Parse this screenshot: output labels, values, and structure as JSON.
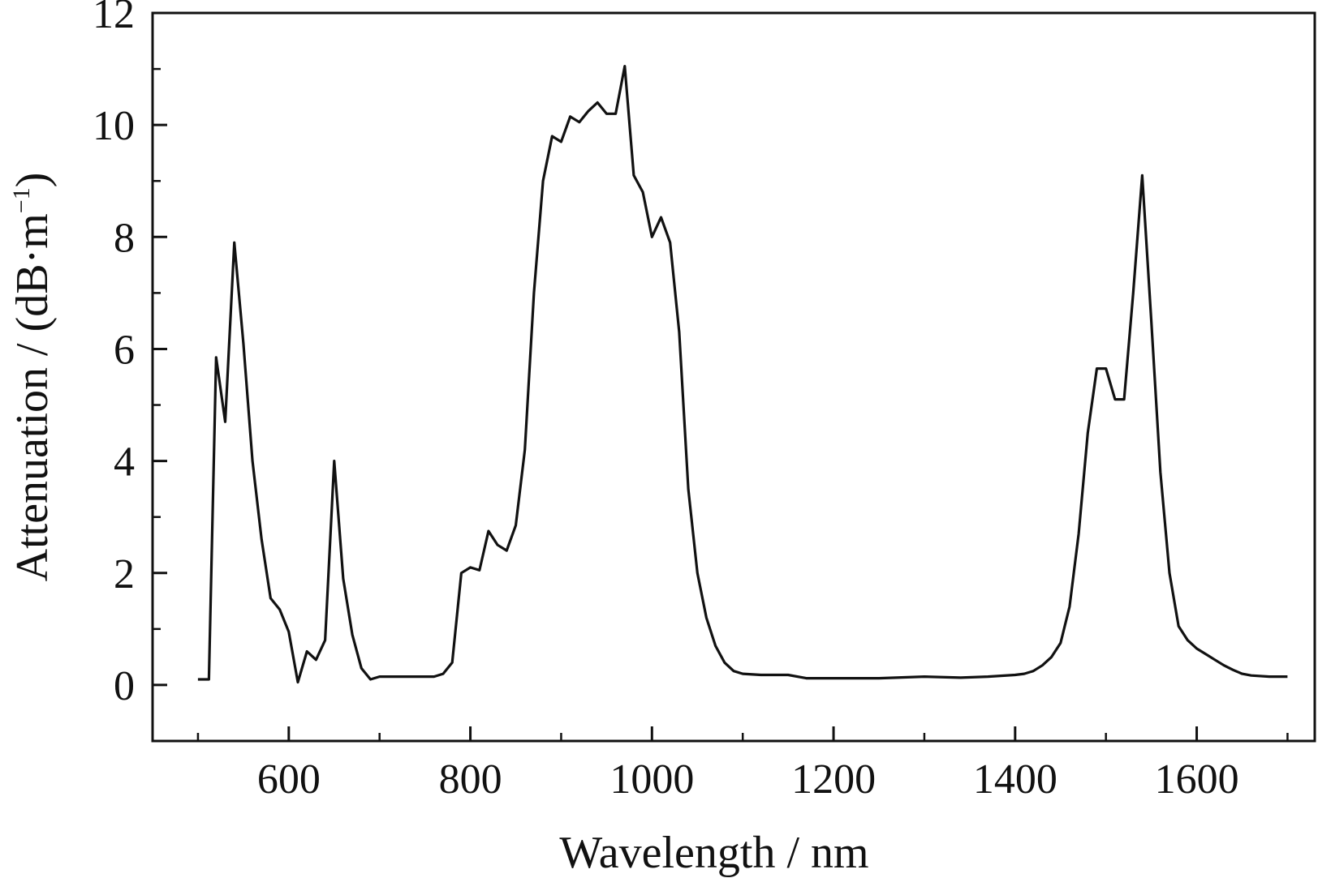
{
  "chart_data": {
    "type": "line",
    "title": "",
    "xlabel": "Wavelength / nm",
    "ylabel": "Attenuation / (dB·m",
    "ylabel_sup": "−1",
    "ylabel_close": ")",
    "xlim": [
      450,
      1730
    ],
    "ylim": [
      -1,
      12
    ],
    "x_ticks": [
      600,
      800,
      1000,
      1200,
      1400,
      1600
    ],
    "y_ticks": [
      0,
      2,
      4,
      6,
      8,
      10,
      12
    ],
    "x_tick_labels": [
      "600",
      "800",
      "1000",
      "1200",
      "1400",
      "1600"
    ],
    "y_tick_labels": [
      "0",
      "2",
      "4",
      "6",
      "8",
      "10",
      "12"
    ],
    "grid": false,
    "line_color": "#111111",
    "series": [
      {
        "x": [
          500,
          512,
          520,
          530,
          540,
          550,
          560,
          570,
          580,
          590,
          600,
          610,
          620,
          630,
          640,
          650,
          660,
          670,
          680,
          690,
          700,
          710,
          720,
          730,
          740,
          750,
          760,
          770,
          780,
          790,
          800,
          810,
          820,
          830,
          840,
          850,
          860,
          870,
          880,
          890,
          900,
          910,
          920,
          930,
          940,
          950,
          960,
          970,
          980,
          990,
          1000,
          1010,
          1020,
          1030,
          1040,
          1050,
          1060,
          1070,
          1080,
          1090,
          1100,
          1120,
          1150,
          1170,
          1200,
          1250,
          1300,
          1340,
          1370,
          1400,
          1410,
          1420,
          1430,
          1440,
          1450,
          1460,
          1470,
          1480,
          1490,
          1500,
          1510,
          1520,
          1530,
          1540,
          1550,
          1560,
          1570,
          1580,
          1590,
          1600,
          1610,
          1620,
          1630,
          1640,
          1650,
          1660,
          1680,
          1700
        ],
        "y": [
          0.1,
          0.1,
          5.85,
          4.7,
          7.9,
          6.1,
          4.0,
          2.6,
          1.55,
          1.35,
          0.95,
          0.05,
          0.6,
          0.45,
          0.8,
          4.0,
          1.9,
          0.9,
          0.3,
          0.1,
          0.15,
          0.15,
          0.15,
          0.15,
          0.15,
          0.15,
          0.15,
          0.2,
          0.4,
          2.0,
          2.1,
          2.05,
          2.75,
          2.5,
          2.4,
          2.85,
          4.2,
          7.0,
          9.0,
          9.8,
          9.7,
          10.15,
          10.05,
          10.25,
          10.4,
          10.2,
          10.2,
          11.05,
          9.1,
          8.8,
          8.0,
          8.35,
          7.9,
          6.3,
          3.5,
          2.0,
          1.2,
          0.7,
          0.4,
          0.25,
          0.2,
          0.18,
          0.18,
          0.12,
          0.12,
          0.12,
          0.15,
          0.13,
          0.15,
          0.18,
          0.2,
          0.25,
          0.35,
          0.5,
          0.75,
          1.4,
          2.7,
          4.5,
          5.65,
          5.65,
          5.1,
          5.1,
          7.0,
          9.1,
          6.5,
          3.8,
          2.0,
          1.05,
          0.8,
          0.65,
          0.55,
          0.45,
          0.35,
          0.27,
          0.2,
          0.17,
          0.15,
          0.15
        ]
      }
    ]
  }
}
